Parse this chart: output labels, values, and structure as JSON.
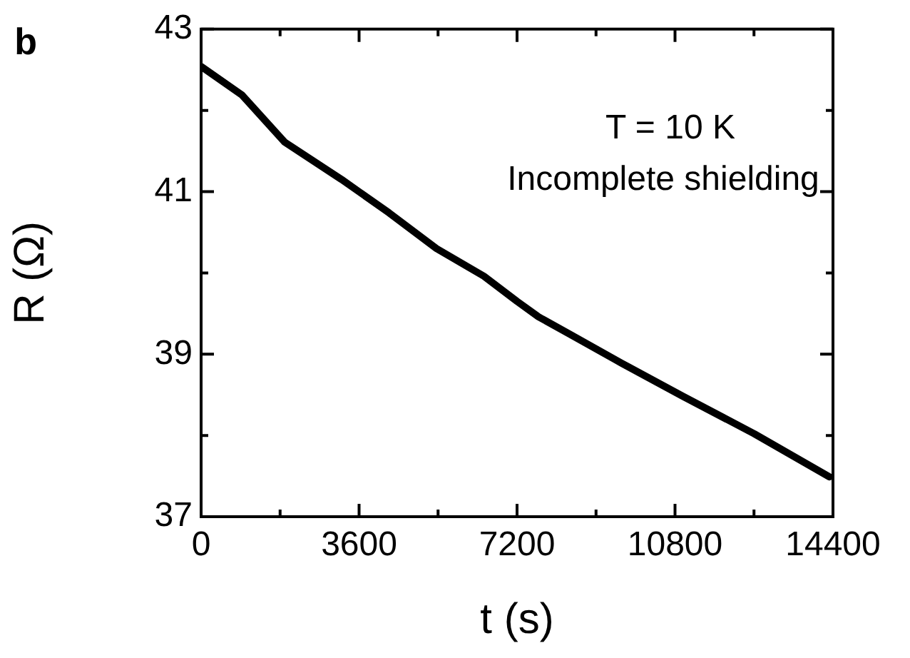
{
  "chart_data": {
    "type": "line",
    "xlabel": "t (s)",
    "ylabel": "R (Ω)",
    "annotations": [
      "b",
      "T = 10 K",
      "Incomplete shielding"
    ],
    "xlim": [
      0,
      14400
    ],
    "ylim": [
      37,
      43
    ],
    "xticks": [
      0,
      {
        "value": 1800,
        "label": null
      },
      3600,
      {
        "value": 5400,
        "label": null
      },
      7200,
      {
        "value": 9000,
        "label": null
      },
      10800,
      {
        "value": 12600,
        "label": null
      },
      14400
    ],
    "yticks": [
      37,
      {
        "value": 38,
        "label": null
      },
      39,
      {
        "value": 40,
        "label": null
      },
      41,
      {
        "value": 42,
        "label": null
      },
      43
    ],
    "grid": false,
    "legend": false,
    "marker": "none",
    "line_style": "solid",
    "series": [
      {
        "color": "#000000",
        "x": [
          0,
          931,
          1904,
          3201,
          4282,
          5364,
          6445,
          7200,
          7688,
          8391,
          9581,
          10986,
          12608,
          14317
        ],
        "values": [
          42.54,
          42.19,
          41.61,
          41.15,
          40.74,
          40.3,
          39.96,
          39.65,
          39.46,
          39.25,
          38.89,
          38.48,
          38.02,
          37.49
        ]
      }
    ]
  }
}
